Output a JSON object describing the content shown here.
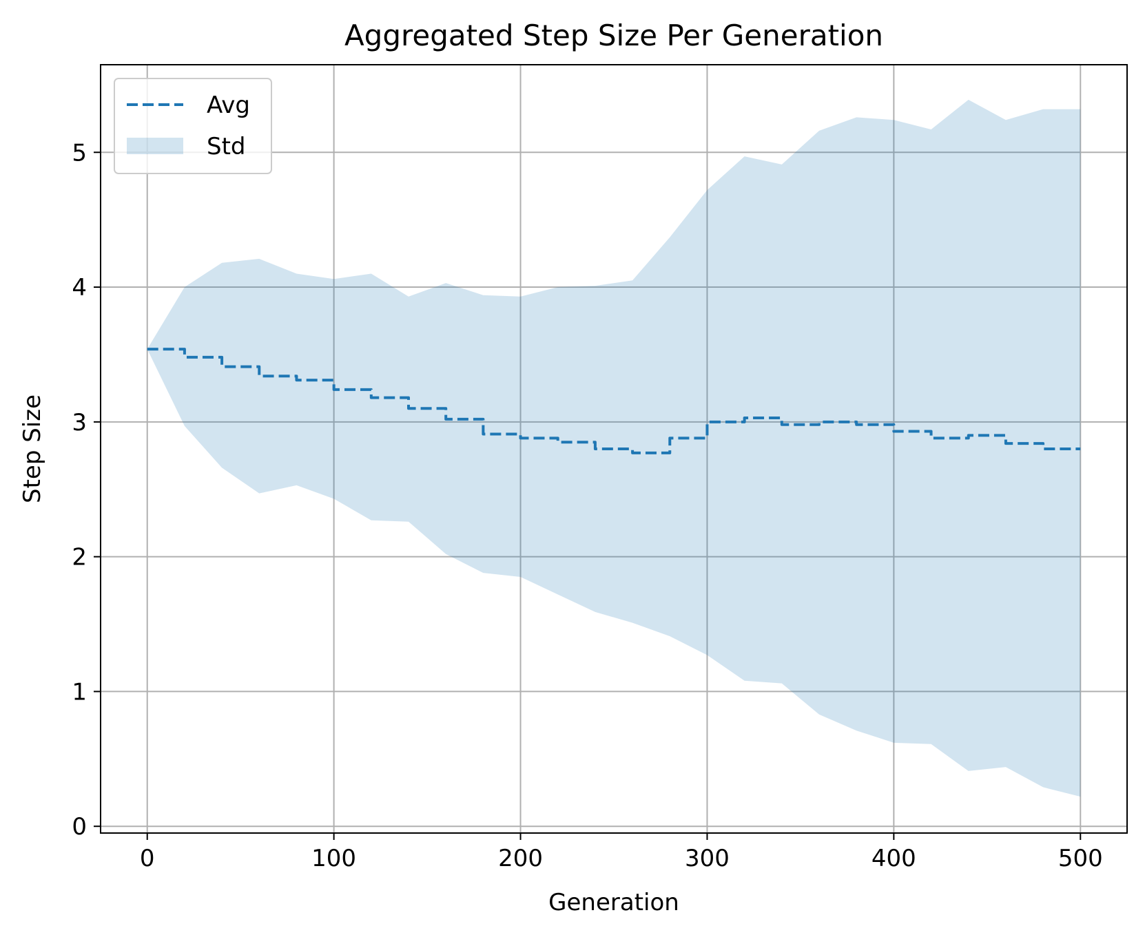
{
  "chart_data": {
    "type": "area",
    "title": "Aggregated Step Size Per Generation",
    "xlabel": "Generation",
    "ylabel": "Step Size",
    "xlim": [
      -25,
      525
    ],
    "ylim": [
      -0.05,
      5.65
    ],
    "xticks": [
      0,
      100,
      200,
      300,
      400,
      500
    ],
    "yticks": [
      0,
      1,
      2,
      3,
      4,
      5
    ],
    "grid": true,
    "legend_position": "top-left",
    "x": [
      0,
      20,
      40,
      60,
      80,
      100,
      120,
      140,
      160,
      180,
      200,
      220,
      240,
      260,
      280,
      300,
      320,
      340,
      360,
      380,
      400,
      420,
      440,
      460,
      480,
      500
    ],
    "series": [
      {
        "name": "Avg",
        "style": "dashed-line",
        "color": "#1f77b4",
        "values": [
          3.54,
          3.48,
          3.41,
          3.34,
          3.31,
          3.24,
          3.18,
          3.1,
          3.02,
          2.91,
          2.88,
          2.85,
          2.8,
          2.77,
          2.88,
          3.0,
          3.03,
          2.98,
          3.0,
          2.98,
          2.93,
          2.88,
          2.9,
          2.84,
          2.8,
          2.8
        ]
      },
      {
        "name": "Std",
        "style": "band",
        "color": "#1f77b4",
        "opacity": 0.2,
        "lower": [
          3.54,
          2.97,
          2.66,
          2.47,
          2.53,
          2.43,
          2.27,
          2.26,
          2.02,
          1.88,
          1.85,
          1.72,
          1.59,
          1.51,
          1.41,
          1.27,
          1.08,
          1.06,
          0.83,
          0.71,
          0.62,
          0.61,
          0.41,
          0.44,
          0.29,
          0.22
        ],
        "upper": [
          3.54,
          4.0,
          4.18,
          4.21,
          4.1,
          4.06,
          4.1,
          3.93,
          4.03,
          3.94,
          3.93,
          4.0,
          4.01,
          4.05,
          4.37,
          4.72,
          4.97,
          4.91,
          5.16,
          5.26,
          5.24,
          5.17,
          5.39,
          5.24,
          5.32,
          5.32
        ]
      }
    ]
  }
}
